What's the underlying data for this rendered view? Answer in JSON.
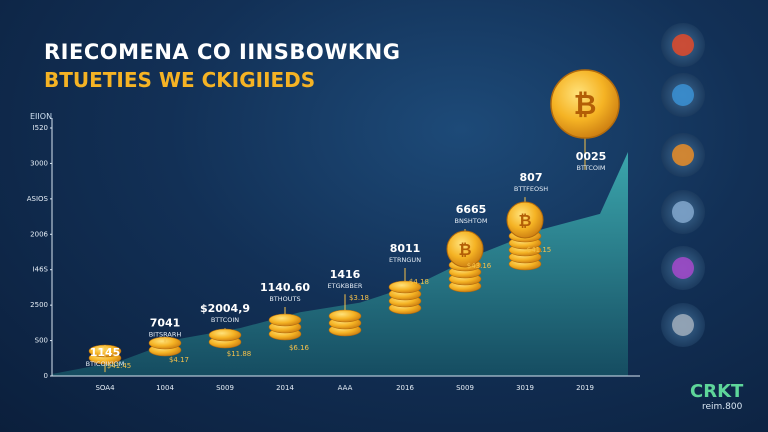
{
  "header": {
    "title": "RIECOMENA CO IINSBOWKNG",
    "subtitle": "BTUETIES WE CKIGIIEDS"
  },
  "watermark": {
    "logo": "CRKT",
    "sub": "reim.800"
  },
  "colors": {
    "coin": "#f5b324",
    "area": "#2e8f99",
    "background": "#123056"
  },
  "icons": [
    "rocket-icon",
    "globe-icon",
    "magnet-icon",
    "planet-icon",
    "galaxy-icon",
    "server-icon"
  ],
  "chart_data": {
    "type": "bar",
    "ylabel": "EIION",
    "ylim": [
      0,
      3500
    ],
    "yticks": [
      "0",
      "S00",
      "2500",
      "I46S",
      "2006",
      "ASIOS",
      "3000",
      "I520"
    ],
    "categories": [
      "SOA4",
      "1004",
      "S009",
      "2014",
      "AAA",
      "2016",
      "S009",
      "3019",
      "2019"
    ],
    "series": [
      {
        "values": [
          280,
          700,
          900,
          1200,
          1380,
          1750,
          2300,
          2750,
          3050
        ],
        "top_labels": [
          "1145",
          "7041",
          "$2004,9",
          "1140.60",
          "1416",
          "8011",
          "6665",
          "807",
          "0025"
        ],
        "sub_labels": [
          "BTICOIKIOM",
          "BITSRARH",
          "BTTCOIN",
          "BTHOUTS",
          "ETGKBBER",
          "ETRNGUN",
          "BNSHTOM",
          "BTTFEOSH",
          "BTTCOIM"
        ],
        "bottom_labels": [
          "$41.45",
          "$4.17",
          "$11.88",
          "$6.16",
          "$3.18",
          "$4.18",
          "$43.16",
          "$41.15",
          ""
        ]
      }
    ]
  }
}
